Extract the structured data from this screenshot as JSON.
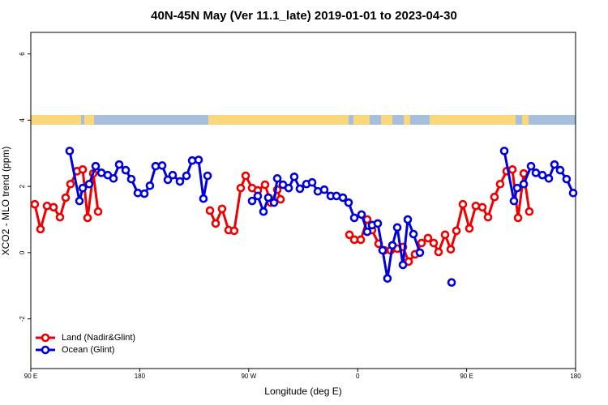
{
  "chart_data": {
    "type": "line",
    "title": "40N-45N May (Ver 11.1_late)   2019-01-01 to 2023-04-30",
    "x_label": "Longitude (deg E)",
    "y_label": "XCO2 - MLO trend (ppm)",
    "xlim": [
      90,
      540
    ],
    "ylim": [
      -3.5,
      6.65
    ],
    "xticks": [
      {
        "value": 90,
        "label": "90 E"
      },
      {
        "value": 180,
        "label": "180"
      },
      {
        "value": 270,
        "label": "90 W"
      },
      {
        "value": 360,
        "label": "0"
      },
      {
        "value": 450,
        "label": "90 E"
      },
      {
        "value": 540,
        "label": "180"
      }
    ],
    "yticks": [
      -2,
      0,
      2,
      4,
      6
    ],
    "legend": "bottomleft",
    "series": [
      {
        "name": "Land (Nadir&Glint)",
        "color": "#ee0000",
        "x": [
          93.3,
          98,
          103.4,
          108.8,
          114.1,
          118.8,
          122.8,
          128.2,
          132.9,
          136.9,
          141.6,
          145.6,
          null,
          238,
          242.7,
          248,
          253.4,
          258,
          263.4,
          267.5,
          272.8,
          277.5,
          283.5,
          288.2,
          293.6,
          296.3,
          null,
          353.2,
          357.2,
          362.6,
          367.9,
          371.9,
          377.3,
          382,
          387.3,
          392.7,
          397.4,
          402.1,
          407.4,
          412.8,
          418.1,
          422.8,
          426.8,
          432.2,
          436.9,
          441.6,
          446.9,
          452.3,
          457.6,
          463,
          467.7,
          473,
          477.7,
          483.1,
          487.8,
          492.5,
          497.2,
          501.8
        ],
        "values": [
          1.46,
          0.71,
          1.41,
          1.37,
          1.07,
          1.66,
          2.07,
          2.46,
          2.51,
          1.05,
          2.39,
          1.24,
          null,
          1.27,
          0.88,
          1.32,
          0.68,
          0.66,
          1.95,
          2.32,
          1.95,
          1.88,
          2.05,
          1.51,
          1.9,
          1.61,
          null,
          0.54,
          0.39,
          0.39,
          1.0,
          0.68,
          0.27,
          0.07,
          0.07,
          0.12,
          0.17,
          -0.27,
          -0.05,
          0.29,
          0.44,
          0.29,
          0.02,
          0.54,
          0.1,
          0.66,
          1.46,
          0.73,
          1.41,
          1.37,
          1.07,
          1.68,
          2.07,
          2.46,
          2.51,
          1.05,
          2.39,
          1.24
        ]
      },
      {
        "name": "Ocean (Glint)",
        "color": "#0000dd",
        "x": [
          122.1,
          130.2,
          132.9,
          138.2,
          143.6,
          148.3,
          153.6,
          158.3,
          163,
          168.4,
          173,
          178.4,
          183.8,
          188.4,
          193.1,
          198.5,
          203.2,
          207.2,
          213.2,
          218.6,
          223.3,
          228.6,
          232.6,
          236,
          null,
          272.8,
          277.5,
          282.2,
          286.2,
          290.9,
          293.6,
          298.3,
          303,
          307.6,
          312.3,
          317.7,
          322.4,
          327.1,
          332.4,
          337.8,
          342.5,
          347.8,
          352.5,
          357.2,
          363.2,
          367.9,
          371.9,
          376.6,
          380.6,
          384.6,
          388.7,
          392.7,
          397.4,
          401.4,
          406.1,
          411.4,
          null,
          437.6,
          null,
          481.1,
          489.1,
          491.8,
          497.2,
          503.2,
          507.2,
          512.6,
          517.9,
          522.6,
          527.3,
          532.6,
          538
        ],
        "values": [
          3.07,
          1.56,
          1.95,
          2.07,
          2.61,
          2.41,
          2.34,
          2.24,
          2.66,
          2.49,
          2.22,
          1.8,
          1.78,
          2.02,
          2.61,
          2.63,
          2.2,
          2.34,
          2.15,
          2.32,
          2.78,
          2.8,
          1.63,
          2.32,
          null,
          1.56,
          1.71,
          1.24,
          1.66,
          1.51,
          2.24,
          2.05,
          1.95,
          2.29,
          1.93,
          2.07,
          2.12,
          1.85,
          1.9,
          1.71,
          1.71,
          1.66,
          1.51,
          1.05,
          1.15,
          0.63,
          0.83,
          0.88,
          0.07,
          -0.78,
          0.22,
          0.76,
          -0.37,
          1.0,
          0.56,
          0.0,
          null,
          -0.9,
          null,
          3.07,
          1.56,
          1.95,
          2.07,
          2.61,
          2.41,
          2.34,
          2.24,
          2.66,
          2.49,
          2.22,
          1.8
        ]
      }
    ]
  }
}
